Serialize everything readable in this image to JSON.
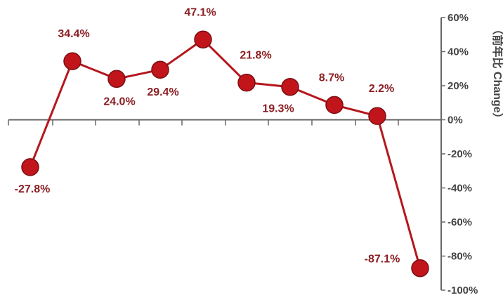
{
  "chart_data": {
    "type": "line",
    "x": [
      1,
      2,
      3,
      4,
      5,
      6,
      7,
      8,
      9,
      10
    ],
    "series": [
      {
        "values": [
          -27.8,
          34.4,
          24.0,
          29.4,
          47.1,
          21.8,
          19.3,
          8.7,
          2.2,
          -87.1
        ],
        "labels": [
          "-27.8%",
          "34.4%",
          "24.0%",
          "29.4%",
          "47.1%",
          "21.8%",
          "19.3%",
          "8.7%",
          "2.2%",
          "-87.1%"
        ]
      }
    ],
    "ylim": [
      -100,
      60
    ],
    "y_ticks": [
      60,
      40,
      20,
      0,
      -20,
      -40,
      -60,
      -80,
      -100
    ],
    "y_tick_labels": [
      "60%",
      "40%",
      "20%",
      "0%",
      "-20%",
      "-40%",
      "-60%",
      "-80%",
      "-100%"
    ],
    "ylabel": "（前年比 Change）",
    "x_tick_count": 11,
    "grid": false,
    "colors": {
      "line": "#b5171d",
      "marker": "#c2151b",
      "marker_edge": "#7c0e12",
      "label": "#8b1f23",
      "axis": "#666666"
    }
  }
}
